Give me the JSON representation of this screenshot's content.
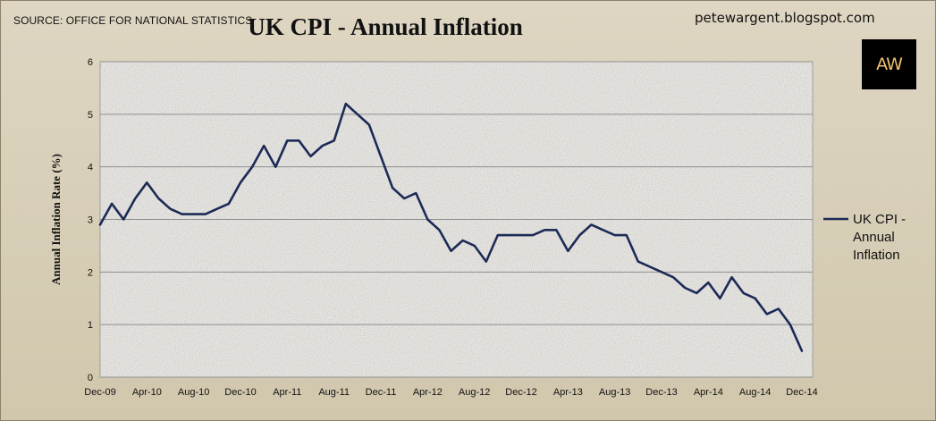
{
  "header": {
    "source": "SOURCE: OFFICE FOR NATIONAL STATISTICS",
    "blog": "petewargent.blogspot.com",
    "logo_text": "AW"
  },
  "colors": {
    "line": "#1c2a57",
    "grid": "#8e8e8e",
    "plot_background": "#e9e7e2"
  },
  "chart_data": {
    "type": "line",
    "title": "UK CPI - Annual Inflation",
    "ylabel": "Annual Inflation Rate (%)",
    "xlabel": "",
    "ylim": [
      0,
      6
    ],
    "yticks": [
      "0",
      "1",
      "2",
      "3",
      "4",
      "5",
      "6"
    ],
    "xtick_labels": [
      "Dec-09",
      "Apr-10",
      "Aug-10",
      "Dec-10",
      "Apr-11",
      "Aug-11",
      "Dec-11",
      "Apr-12",
      "Aug-12",
      "Dec-12",
      "Apr-13",
      "Aug-13",
      "Dec-13",
      "Apr-14",
      "Aug-14",
      "Dec-14"
    ],
    "grid": true,
    "legend_position": "right",
    "series": [
      {
        "name": "UK CPI - Annual Inflation",
        "legend_lines": [
          "UK CPI -",
          "Annual",
          "Inflation"
        ],
        "x": [
          "Dec-09",
          "Jan-10",
          "Feb-10",
          "Mar-10",
          "Apr-10",
          "May-10",
          "Jun-10",
          "Jul-10",
          "Aug-10",
          "Sep-10",
          "Oct-10",
          "Nov-10",
          "Dec-10",
          "Jan-11",
          "Feb-11",
          "Mar-11",
          "Apr-11",
          "May-11",
          "Jun-11",
          "Jul-11",
          "Aug-11",
          "Sep-11",
          "Oct-11",
          "Nov-11",
          "Dec-11",
          "Jan-12",
          "Feb-12",
          "Mar-12",
          "Apr-12",
          "May-12",
          "Jun-12",
          "Jul-12",
          "Aug-12",
          "Sep-12",
          "Oct-12",
          "Nov-12",
          "Dec-12",
          "Jan-13",
          "Feb-13",
          "Mar-13",
          "Apr-13",
          "May-13",
          "Jun-13",
          "Jul-13",
          "Aug-13",
          "Sep-13",
          "Oct-13",
          "Nov-13",
          "Dec-13",
          "Jan-14",
          "Feb-14",
          "Mar-14",
          "Apr-14",
          "May-14",
          "Jun-14",
          "Jul-14",
          "Aug-14",
          "Sep-14",
          "Oct-14",
          "Nov-14",
          "Dec-14"
        ],
        "values": [
          2.9,
          3.3,
          3.0,
          3.4,
          3.7,
          3.4,
          3.2,
          3.1,
          3.1,
          3.1,
          3.2,
          3.3,
          3.7,
          4.0,
          4.4,
          4.0,
          4.5,
          4.5,
          4.2,
          4.4,
          4.5,
          5.2,
          5.0,
          4.8,
          4.2,
          3.6,
          3.4,
          3.5,
          3.0,
          2.8,
          2.4,
          2.6,
          2.5,
          2.2,
          2.7,
          2.7,
          2.7,
          2.7,
          2.8,
          2.8,
          2.4,
          2.7,
          2.9,
          2.8,
          2.7,
          2.7,
          2.2,
          2.1,
          2.0,
          1.9,
          1.7,
          1.6,
          1.8,
          1.5,
          1.9,
          1.6,
          1.5,
          1.2,
          1.3,
          1.0,
          0.5
        ]
      }
    ]
  }
}
